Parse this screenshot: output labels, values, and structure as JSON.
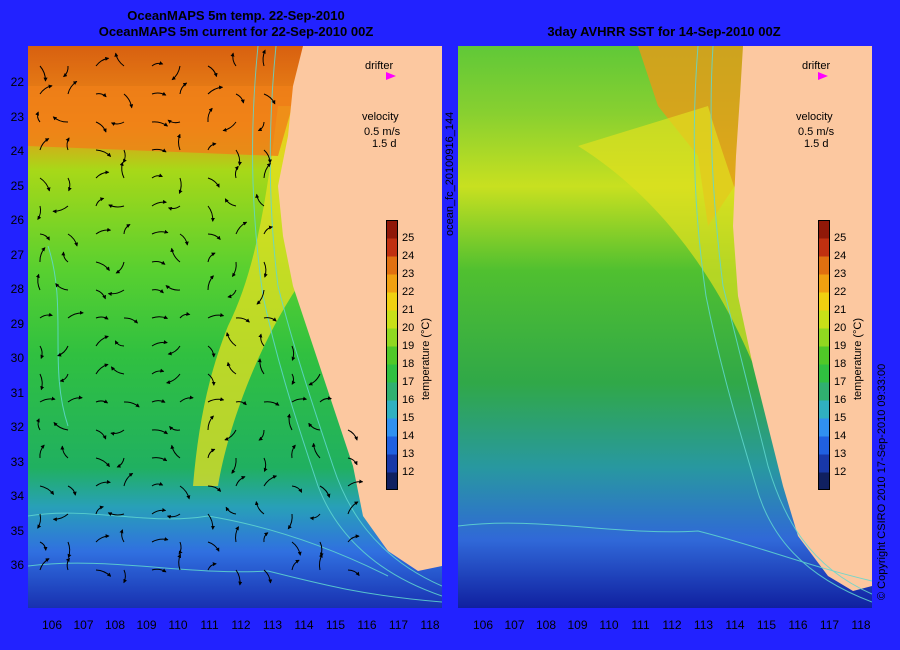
{
  "left_panel": {
    "title_line1": "OceanMAPS 5m temp. 22-Sep-2010",
    "title_line2": "OceanMAPS 5m current for 22-Sep-2010 00Z",
    "side_label": "ocean_fc_20100916_144"
  },
  "right_panel": {
    "title": "3day AVHRR SST for 14-Sep-2010 00Z",
    "side_label": "© Copyright CSIRO 2010   17-Sep-2010 09:33:00"
  },
  "legend": {
    "drifter_label": "drifter",
    "velocity_label": "velocity",
    "velocity_value": "0.5 m/s",
    "velocity_time": "1.5 d"
  },
  "colorbar": {
    "title": "temperature (°C)",
    "ticks": [
      "12",
      "13",
      "14",
      "15",
      "16",
      "17",
      "18",
      "19",
      "20",
      "21",
      "22",
      "23",
      "24",
      "25"
    ]
  },
  "axes": {
    "lat_labels": [
      "22",
      "23",
      "24",
      "25",
      "26",
      "27",
      "28",
      "29",
      "30",
      "31",
      "32",
      "33",
      "34",
      "35",
      "36"
    ],
    "lon_labels": [
      "106",
      "107",
      "108",
      "109",
      "110",
      "111",
      "112",
      "113",
      "114",
      "115",
      "116",
      "117",
      "118"
    ]
  },
  "colors": {
    "background": "#2222ff",
    "land": "#fcc8a0",
    "drifter": "#ff00ff"
  }
}
